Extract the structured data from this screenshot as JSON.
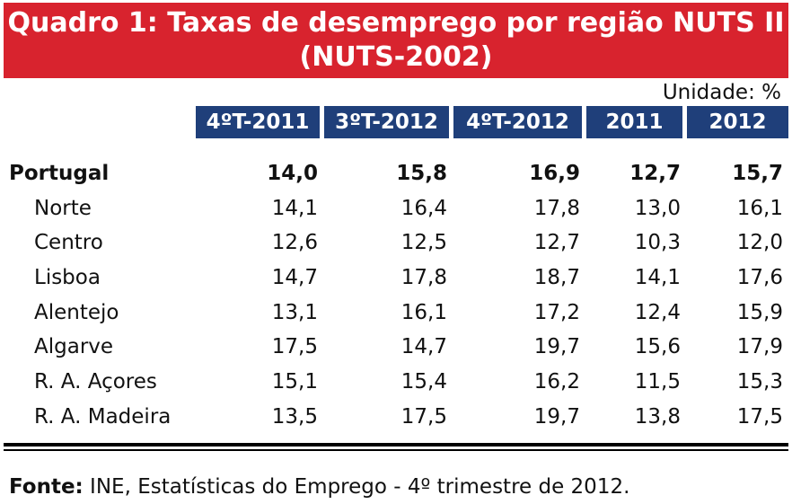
{
  "title": {
    "line1": "Quadro 1: Taxas de desemprego por região NUTS II",
    "line2": "(NUTS-2002)"
  },
  "unit": "Unidade: %",
  "columns": [
    "4ºT-2011",
    "3ºT-2012",
    "4ºT-2012",
    "2011",
    "2012"
  ],
  "rows": [
    {
      "label": "Portugal",
      "values": [
        "14,0",
        "15,8",
        "16,9",
        "12,7",
        "15,7"
      ]
    },
    {
      "label": "Norte",
      "values": [
        "14,1",
        "16,4",
        "17,8",
        "13,0",
        "16,1"
      ]
    },
    {
      "label": "Centro",
      "values": [
        "12,6",
        "12,5",
        "12,7",
        "10,3",
        "12,0"
      ]
    },
    {
      "label": "Lisboa",
      "values": [
        "14,7",
        "17,8",
        "18,7",
        "14,1",
        "17,6"
      ]
    },
    {
      "label": "Alentejo",
      "values": [
        "13,1",
        "16,1",
        "17,2",
        "12,4",
        "15,9"
      ]
    },
    {
      "label": "Algarve",
      "values": [
        "17,5",
        "14,7",
        "19,7",
        "15,6",
        "17,9"
      ]
    },
    {
      "label": "R. A. Açores",
      "values": [
        "15,1",
        "15,4",
        "16,2",
        "11,5",
        "15,3"
      ]
    },
    {
      "label": "R. A. Madeira",
      "values": [
        "13,5",
        "17,5",
        "19,7",
        "13,8",
        "17,5"
      ]
    }
  ],
  "source": {
    "label": "Fonte:",
    "text": " INE, Estatísticas do Emprego - 4º trimestre de 2012."
  }
}
